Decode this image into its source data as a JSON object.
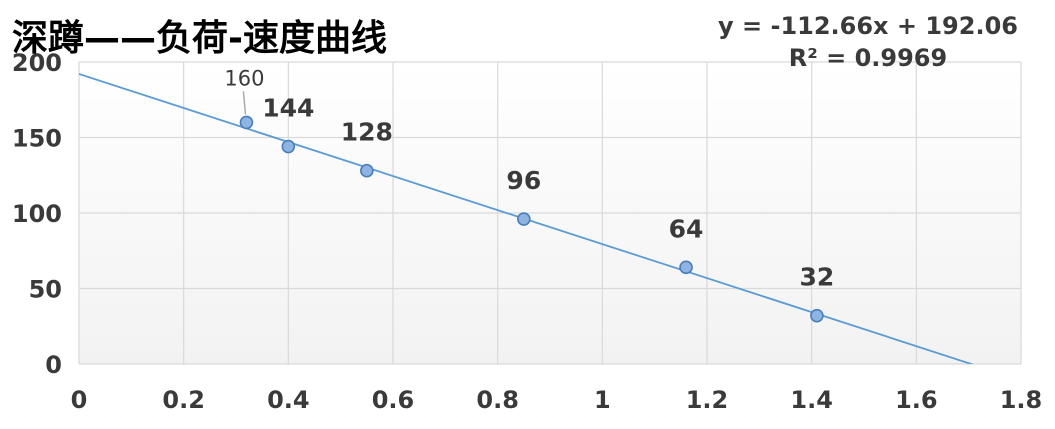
{
  "chart_data": {
    "type": "scatter",
    "title": "深蹲——负荷-速度曲线",
    "xlabel": "",
    "ylabel": "",
    "xlim": [
      0,
      1.8
    ],
    "ylim": [
      0,
      200
    ],
    "x_ticks": [
      "0",
      "0.2",
      "0.4",
      "0.6",
      "0.8",
      "1",
      "1.2",
      "1.4",
      "1.6",
      "1.8"
    ],
    "y_ticks": [
      "0",
      "50",
      "100",
      "150",
      "200"
    ],
    "grid": true,
    "points": [
      {
        "x": 0.32,
        "y": 160,
        "label": "160"
      },
      {
        "x": 0.4,
        "y": 144,
        "label": "144"
      },
      {
        "x": 0.55,
        "y": 128,
        "label": "128"
      },
      {
        "x": 0.85,
        "y": 96,
        "label": "96"
      },
      {
        "x": 1.16,
        "y": 64,
        "label": "64"
      },
      {
        "x": 1.41,
        "y": 32,
        "label": "32"
      }
    ],
    "trendline": {
      "type": "linear",
      "slope": -112.66,
      "intercept": 192.06,
      "equation": "y = -112.66x + 192.06",
      "r_squared": "R² = 0.9969"
    },
    "colors": {
      "marker_fill": "#8fb4e3",
      "marker_stroke": "#4a7ebb",
      "trendline": "#5b9bd5",
      "grid": "#d9d9d9",
      "plot_bg_top": "#ffffff",
      "plot_bg_bottom": "#f2f2f2"
    }
  }
}
